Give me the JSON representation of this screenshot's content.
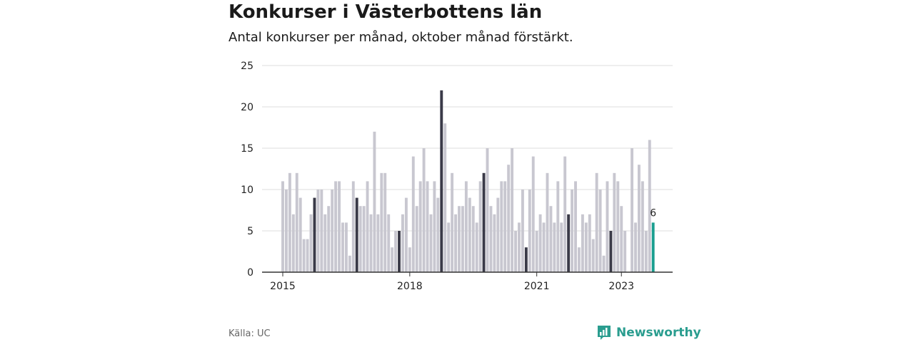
{
  "header": {
    "title": "Konkurser i Västerbottens län",
    "subtitle": "Antal konkurser per månad, oktober månad förstärkt."
  },
  "footer": {
    "source": "Källa: UC",
    "brand": "Newsworthy",
    "brand_icon": "bar-chart-logo-icon"
  },
  "colors": {
    "bar": "#c8c7d0",
    "highlight": "#3a3a48",
    "latest": "#1a9e8f",
    "grid": "#dddddd",
    "axis": "#333333",
    "brand": "#2a9d8f"
  },
  "chart_data": {
    "type": "bar",
    "start": "2015-01",
    "frequency": "monthly",
    "highlight_month": "October",
    "values": [
      11,
      10,
      12,
      7,
      12,
      9,
      4,
      4,
      7,
      9,
      10,
      10,
      7,
      8,
      10,
      11,
      11,
      6,
      6,
      2,
      11,
      9,
      8,
      8,
      11,
      7,
      17,
      7,
      12,
      12,
      7,
      3,
      5,
      5,
      7,
      9,
      3,
      14,
      8,
      11,
      15,
      11,
      7,
      11,
      9,
      22,
      18,
      6,
      12,
      7,
      8,
      8,
      11,
      9,
      8,
      6,
      11,
      12,
      15,
      8,
      7,
      9,
      11,
      11,
      13,
      15,
      5,
      6,
      10,
      3,
      10,
      14,
      5,
      7,
      6,
      12,
      8,
      6,
      11,
      6,
      14,
      7,
      10,
      11,
      3,
      7,
      6,
      7,
      4,
      12,
      10,
      2,
      11,
      5,
      12,
      11,
      8,
      5,
      0,
      15,
      6,
      13,
      11,
      5,
      16,
      6
    ],
    "highlight_indices": [
      9,
      21,
      33,
      45,
      57,
      69,
      81,
      93
    ],
    "latest_label": "6",
    "ylim": [
      0,
      25
    ],
    "yticks": [
      0,
      5,
      10,
      15,
      20,
      25
    ],
    "xtick_labels": [
      "2015",
      "2018",
      "2021",
      "2023"
    ],
    "xtick_indices": [
      0,
      36,
      72,
      96
    ],
    "grid": true,
    "xlabel": "",
    "ylabel": ""
  }
}
